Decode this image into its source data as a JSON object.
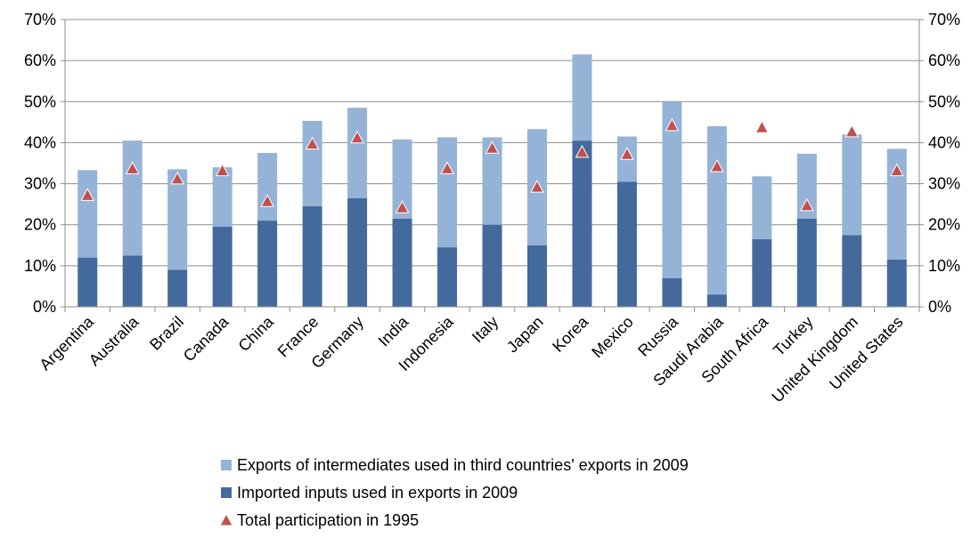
{
  "chart_data": {
    "type": "bar",
    "stacked": true,
    "categories": [
      "Argentina",
      "Australia",
      "Brazil",
      "Canada",
      "China",
      "France",
      "Germany",
      "India",
      "Indonesia",
      "Italy",
      "Japan",
      "Korea",
      "Mexico",
      "Russia",
      "Saudi Arabia",
      "South Africa",
      "Turkey",
      "United Kingdom",
      "United States"
    ],
    "series": [
      {
        "name": "Imported inputs used in exports in 2009",
        "kind": "bar",
        "color": "#44699c",
        "values": [
          12.0,
          12.5,
          9.0,
          19.5,
          21.0,
          24.5,
          26.5,
          21.5,
          14.5,
          20.0,
          15.0,
          40.5,
          30.5,
          7.0,
          3.0,
          16.5,
          21.5,
          17.5,
          11.5
        ]
      },
      {
        "name": "Exports of intermediates used in third countries' exports in 2009",
        "kind": "bar",
        "color": "#95b3d7",
        "values": [
          21.3,
          28.0,
          24.5,
          14.5,
          16.5,
          20.8,
          22.0,
          19.3,
          26.8,
          21.3,
          28.3,
          21.0,
          11.0,
          43.0,
          41.0,
          15.3,
          15.8,
          24.5,
          27.0
        ]
      },
      {
        "name": "Total participation in 1995",
        "kind": "marker",
        "marker": "triangle",
        "color": "#c0504d",
        "values": [
          27.0,
          33.5,
          31.0,
          33.0,
          25.5,
          39.5,
          41.0,
          24.0,
          33.5,
          38.5,
          29.0,
          37.5,
          37.0,
          44.0,
          34.0,
          43.5,
          24.5,
          42.5,
          33.0
        ]
      }
    ],
    "y_axis": {
      "min": 0,
      "max": 70,
      "step": 10,
      "tick_labels": [
        "0%",
        "10%",
        "20%",
        "30%",
        "40%",
        "50%",
        "60%",
        "70%"
      ],
      "mirrored_right": true
    },
    "grid": true,
    "legend_position": "bottom",
    "title": "",
    "xlabel": "",
    "ylabel": ""
  }
}
